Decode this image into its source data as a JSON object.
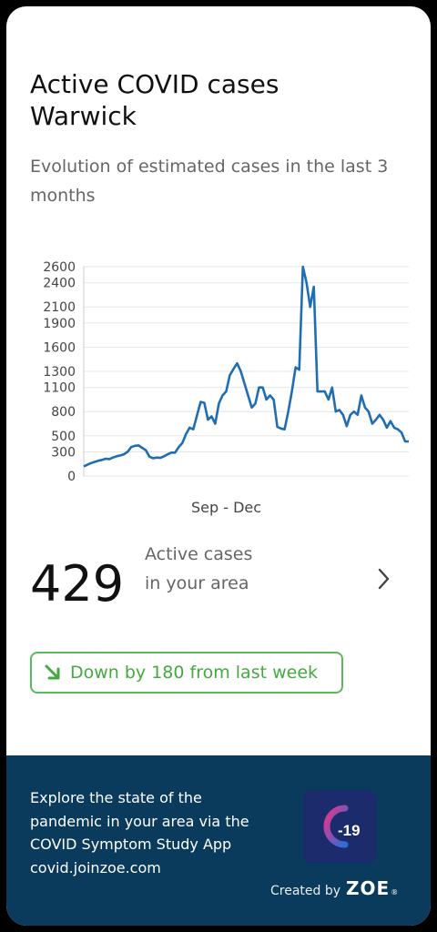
{
  "card": {
    "title_line1": "Active COVID cases",
    "title_line2": "Warwick",
    "subtitle": "Evolution of estimated cases in the last 3 months"
  },
  "summary": {
    "count": "429",
    "label": "Active cases in your area",
    "trend_label": "Down by 180 from last week",
    "trend_direction": "down",
    "trend_color": "#44aa3f"
  },
  "footer": {
    "text": "Explore the state of the pandemic in your area via the COVID Symptom Study App covid.joinzoe.com",
    "created_by": "Created by",
    "brand": "ZOE",
    "reg_mark": "®",
    "logo_text": "-19",
    "background": "#0b3b5c"
  },
  "chart_data": {
    "type": "line",
    "xlabel": "Sep - Dec",
    "ylim": [
      0,
      2600
    ],
    "yticks": [
      0,
      300,
      500,
      800,
      1100,
      1300,
      1600,
      1900,
      2100,
      2400,
      2600
    ],
    "grid": true,
    "line_color": "#1f6db3",
    "series": [
      {
        "values": [
          120,
          140,
          160,
          175,
          190,
          200,
          215,
          210,
          230,
          245,
          255,
          270,
          300,
          360,
          375,
          380,
          350,
          320,
          240,
          220,
          230,
          225,
          245,
          270,
          290,
          290,
          360,
          410,
          520,
          600,
          580,
          750,
          920,
          910,
          700,
          740,
          650,
          900,
          1000,
          1050,
          1250,
          1330,
          1400,
          1300,
          1150,
          1000,
          850,
          900,
          1100,
          1100,
          950,
          1000,
          950,
          610,
          590,
          580,
          800,
          1050,
          1350,
          1320,
          2600,
          2400,
          2100,
          2350,
          1050,
          1050,
          1050,
          950,
          1100,
          800,
          820,
          760,
          620,
          760,
          800,
          760,
          1000,
          850,
          800,
          650,
          700,
          760,
          700,
          600,
          680,
          600,
          580,
          540,
          430,
          429
        ]
      }
    ]
  }
}
